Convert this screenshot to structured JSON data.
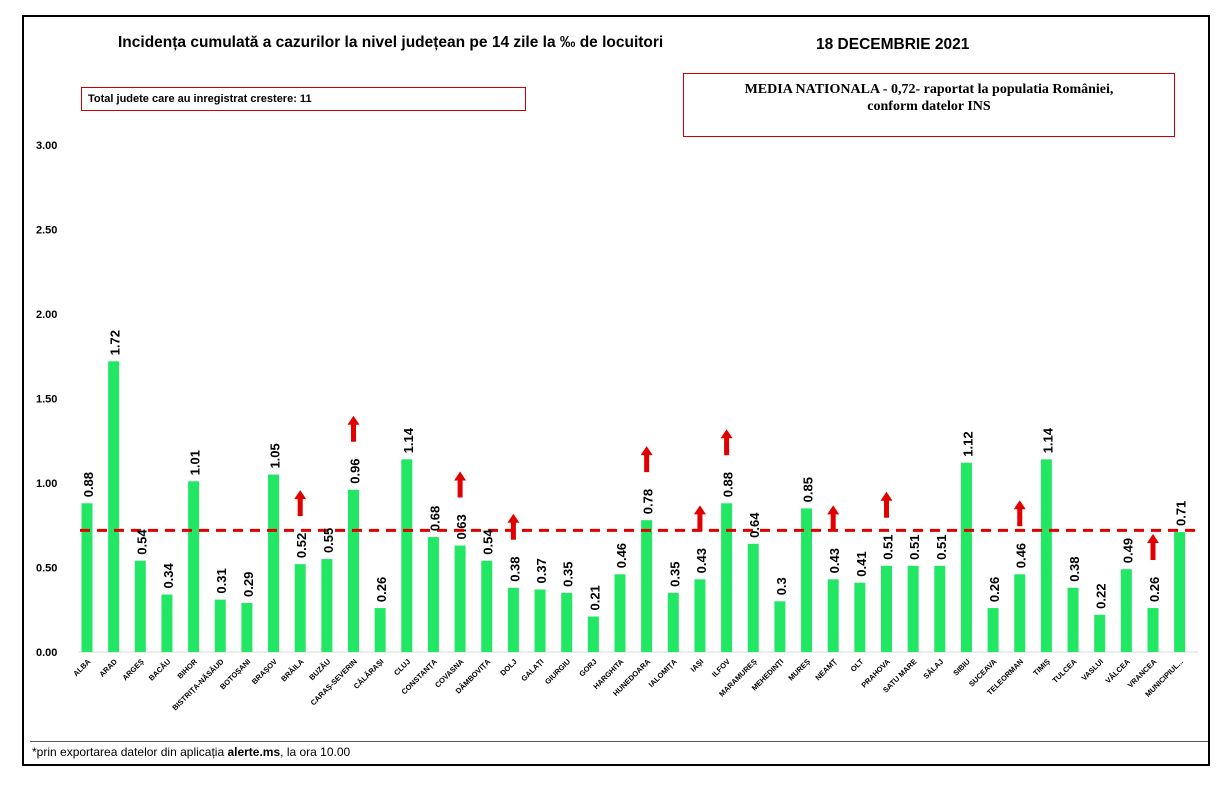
{
  "header": {
    "title": "Incidența cumulată a cazurilor la nivel județean pe 14 zile la ‰ de locuitori",
    "date": "18 DECEMBRIE 2021"
  },
  "note_box": "Total judete care au inregistrat crestere: 11",
  "national_box": {
    "line1": "MEDIA NATIONALA - 0,72-  raportat la populatia României,",
    "line2": "conform datelor INS"
  },
  "footer": {
    "prefix": "*prin exportarea datelor din aplicația ",
    "app": "alerte.ms",
    "suffix": ", la ora 10.00"
  },
  "colors": {
    "bar": "#22e765",
    "reference_line": "#e00000",
    "increase_arrow": "#e00000",
    "box_border": "#d00000"
  },
  "chart_data": {
    "type": "bar",
    "categories": [
      "ALBA",
      "ARAD",
      "ARGEȘ",
      "BACĂU",
      "BIHOR",
      "BISTRIȚA-NĂSĂUD",
      "BOTOȘANI",
      "BRAȘOV",
      "BRĂILA",
      "BUZĂU",
      "CARAȘ-SEVERIN",
      "CĂLĂRAȘI",
      "CLUJ",
      "CONSTANȚA",
      "COVASNA",
      "DÂMBOVIȚA",
      "DOLJ",
      "GALAȚI",
      "GIURGIU",
      "GORJ",
      "HARGHITA",
      "HUNEDOARA",
      "IALOMIȚA",
      "IAȘI",
      "ILFOV",
      "MARAMUREȘ",
      "MEHEDINȚI",
      "MUREȘ",
      "NEAMȚ",
      "OLT",
      "PRAHOVA",
      "SATU MARE",
      "SĂLAJ",
      "SIBIU",
      "SUCEAVA",
      "TELEORMAN",
      "TIMIȘ",
      "TULCEA",
      "VASLUI",
      "VÂLCEA",
      "VRANCEA",
      "MUNICIPIUL..."
    ],
    "values": [
      0.88,
      1.72,
      0.54,
      0.34,
      1.01,
      0.31,
      0.29,
      1.05,
      0.52,
      0.55,
      0.96,
      0.26,
      1.14,
      0.68,
      0.63,
      0.54,
      0.38,
      0.37,
      0.35,
      0.21,
      0.46,
      0.78,
      0.35,
      0.43,
      0.88,
      0.64,
      0.3,
      0.85,
      0.43,
      0.41,
      0.51,
      0.51,
      0.51,
      1.12,
      0.26,
      0.46,
      1.14,
      0.38,
      0.22,
      0.49,
      0.26,
      0.71
    ],
    "value_labels": [
      "0.88",
      "1.72",
      "0.54",
      "0.34",
      "1.01",
      "0.31",
      "0.29",
      "1.05",
      "0.52",
      "0.55",
      "0.96",
      "0.26",
      "1.14",
      "0.68",
      "0.63",
      "0.54",
      "0.38",
      "0.37",
      "0.35",
      "0.21",
      "0.46",
      "0.78",
      "0.35",
      "0.43",
      "0.88",
      "0.64",
      "0.3",
      "0.85",
      "0.43",
      "0.41",
      "0.51",
      "0.51",
      "0.51",
      "1.12",
      "0.26",
      "0.46",
      "1.14",
      "0.38",
      "0.22",
      "0.49",
      "0.26",
      "0.71"
    ],
    "increase": [
      "BRĂILA",
      "CARAȘ-SEVERIN",
      "COVASNA",
      "DOLJ",
      "HUNEDOARA",
      "IAȘI",
      "ILFOV",
      "NEAMȚ",
      "PRAHOVA",
      "TELEORMAN",
      "VRANCEA"
    ],
    "ytick_labels": [
      "0.00",
      "0.50",
      "1.00",
      "1.50",
      "2.00",
      "2.50",
      "3.00"
    ],
    "ylim": [
      0,
      3
    ],
    "reference_value": 0.72,
    "grid": false,
    "legend": "none"
  }
}
